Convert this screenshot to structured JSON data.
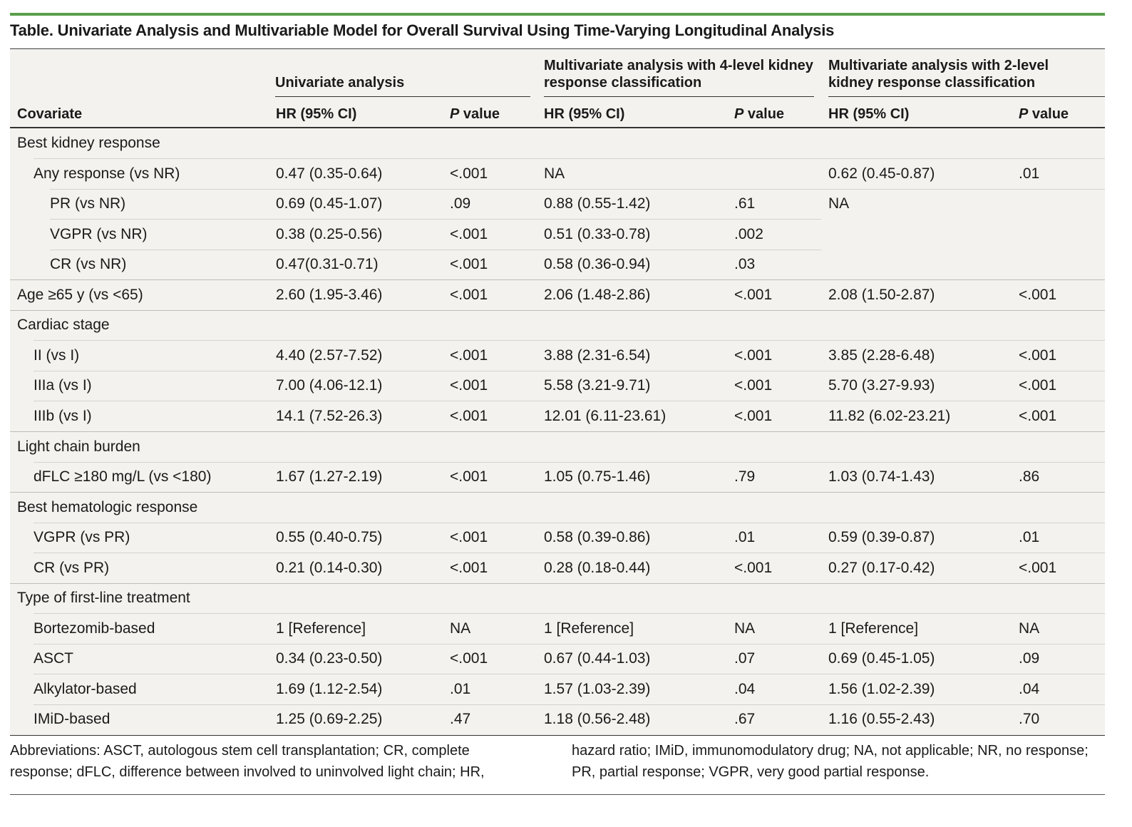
{
  "title": "Table. Univariate Analysis and Multivariable Model for Overall Survival Using Time-Varying Longitudinal Analysis",
  "header": {
    "covariate": "Covariate",
    "group1": "Univariate analysis",
    "group2_line1": "Multivariate analysis with 4-level kidney",
    "group2_line2": "response classification",
    "group3_line1": "Multivariate analysis with 2-level",
    "group3_line2": "kidney response classification",
    "hr": "HR (95% CI)",
    "p_italic": "P",
    "p_rest": " value"
  },
  "rows": [
    {
      "label": "Best kidney response",
      "indent": 0,
      "u_hr": "",
      "u_p": "",
      "m4_hr": "",
      "m4_p": "",
      "m2_hr": "",
      "m2_p": ""
    },
    {
      "label": "Any response (vs NR)",
      "indent": 1,
      "u_hr": "0.47 (0.35-0.64)",
      "u_p": "<.001",
      "m4_hr": "NA",
      "m4_p": "",
      "m2_hr": "0.62 (0.45-0.87)",
      "m2_p": ".01"
    },
    {
      "label": "PR (vs NR)",
      "indent": 2,
      "u_hr": "0.69 (0.45-1.07)",
      "u_p": ".09",
      "m4_hr": "0.88 (0.55-1.42)",
      "m4_p": ".61",
      "m2_hr": "NA",
      "m2_p": ""
    },
    {
      "label": "VGPR (vs NR)",
      "indent": 2,
      "u_hr": "0.38 (0.25-0.56)",
      "u_p": "<.001",
      "m4_hr": "0.51 (0.33-0.78)",
      "m4_p": ".002",
      "m2_hr": "",
      "m2_p": ""
    },
    {
      "label": "CR (vs NR)",
      "indent": 2,
      "u_hr": "0.47(0.31-0.71)",
      "u_p": "<.001",
      "m4_hr": "0.58 (0.36-0.94)",
      "m4_p": ".03",
      "m2_hr": "",
      "m2_p": ""
    },
    {
      "label": "Age ≥65 y (vs <65)",
      "indent": 0,
      "u_hr": "2.60 (1.95-3.46)",
      "u_p": "<.001",
      "m4_hr": "2.06 (1.48-2.86)",
      "m4_p": "<.001",
      "m2_hr": "2.08 (1.50-2.87)",
      "m2_p": "<.001"
    },
    {
      "label": "Cardiac stage",
      "indent": 0,
      "u_hr": "",
      "u_p": "",
      "m4_hr": "",
      "m4_p": "",
      "m2_hr": "",
      "m2_p": ""
    },
    {
      "label": "II (vs I)",
      "indent": 1,
      "u_hr": "4.40 (2.57-7.52)",
      "u_p": "<.001",
      "m4_hr": "3.88 (2.31-6.54)",
      "m4_p": "<.001",
      "m2_hr": "3.85 (2.28-6.48)",
      "m2_p": "<.001"
    },
    {
      "label": "IIIa (vs I)",
      "indent": 1,
      "u_hr": "7.00 (4.06-12.1)",
      "u_p": "<.001",
      "m4_hr": "5.58 (3.21-9.71)",
      "m4_p": "<.001",
      "m2_hr": "5.70 (3.27-9.93)",
      "m2_p": "<.001"
    },
    {
      "label": "IIIb (vs I)",
      "indent": 1,
      "u_hr": "14.1 (7.52-26.3)",
      "u_p": "<.001",
      "m4_hr": "12.01 (6.11-23.61)",
      "m4_p": "<.001",
      "m2_hr": "11.82 (6.02-23.21)",
      "m2_p": "<.001"
    },
    {
      "label": "Light chain burden",
      "indent": 0,
      "u_hr": "",
      "u_p": "",
      "m4_hr": "",
      "m4_p": "",
      "m2_hr": "",
      "m2_p": ""
    },
    {
      "label": "dFLC ≥180 mg/L (vs <180)",
      "indent": 1,
      "u_hr": "1.67 (1.27-2.19)",
      "u_p": "<.001",
      "m4_hr": "1.05 (0.75-1.46)",
      "m4_p": ".79",
      "m2_hr": "1.03 (0.74-1.43)",
      "m2_p": ".86"
    },
    {
      "label": "Best hematologic response",
      "indent": 0,
      "u_hr": "",
      "u_p": "",
      "m4_hr": "",
      "m4_p": "",
      "m2_hr": "",
      "m2_p": ""
    },
    {
      "label": "VGPR (vs PR)",
      "indent": 1,
      "u_hr": "0.55 (0.40-0.75)",
      "u_p": "<.001",
      "m4_hr": "0.58 (0.39-0.86)",
      "m4_p": ".01",
      "m2_hr": "0.59 (0.39-0.87)",
      "m2_p": ".01"
    },
    {
      "label": "CR (vs PR)",
      "indent": 1,
      "u_hr": "0.21 (0.14-0.30)",
      "u_p": "<.001",
      "m4_hr": "0.28 (0.18-0.44)",
      "m4_p": "<.001",
      "m2_hr": "0.27 (0.17-0.42)",
      "m2_p": "<.001"
    },
    {
      "label": "Type of first-line treatment",
      "indent": 0,
      "u_hr": "",
      "u_p": "",
      "m4_hr": "",
      "m4_p": "",
      "m2_hr": "",
      "m2_p": ""
    },
    {
      "label": "Bortezomib-based",
      "indent": 1,
      "u_hr": "1 [Reference]",
      "u_p": "NA",
      "m4_hr": "1 [Reference]",
      "m4_p": "NA",
      "m2_hr": "1 [Reference]",
      "m2_p": "NA"
    },
    {
      "label": "ASCT",
      "indent": 1,
      "u_hr": "0.34 (0.23-0.50)",
      "u_p": "<.001",
      "m4_hr": "0.67 (0.44-1.03)",
      "m4_p": ".07",
      "m2_hr": "0.69 (0.45-1.05)",
      "m2_p": ".09"
    },
    {
      "label": "Alkylator-based",
      "indent": 1,
      "u_hr": "1.69 (1.12-2.54)",
      "u_p": ".01",
      "m4_hr": "1.57 (1.03-2.39)",
      "m4_p": ".04",
      "m2_hr": "1.56 (1.02-2.39)",
      "m2_p": ".04"
    },
    {
      "label": "IMiD-based",
      "indent": 1,
      "u_hr": "1.25 (0.69-2.25)",
      "u_p": ".47",
      "m4_hr": "1.18 (0.56-2.48)",
      "m4_p": ".67",
      "m2_hr": "1.16 (0.55-2.43)",
      "m2_p": ".70"
    }
  ],
  "footnote": {
    "left": "Abbreviations: ASCT, autologous stem cell transplantation; CR, complete response; dFLC, difference between involved to uninvolved light chain; HR,",
    "right": "hazard ratio; IMiD, immunomodulatory drug; NA, not applicable; NR, no response; PR, partial response; VGPR, very good partial response."
  },
  "colors": {
    "accent_bar": "#5a9e4b",
    "table_bg": "#f3f2ee",
    "rule": "#333333"
  }
}
